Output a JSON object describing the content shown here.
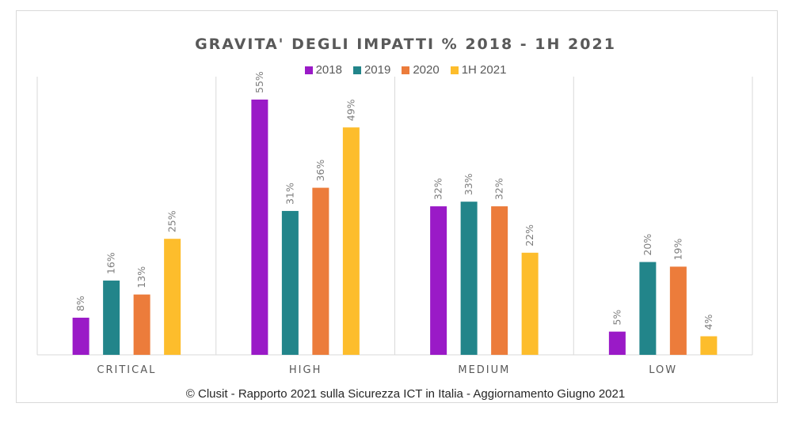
{
  "chart_data": {
    "type": "bar",
    "title": "GRAVITA' DEGLI IMPATTI % 2018 - 1H 2021",
    "categories": [
      "CRITICAL",
      "HIGH",
      "MEDIUM",
      "LOW"
    ],
    "series": [
      {
        "name": "2018",
        "color": "#9a1ac7",
        "values": [
          8,
          55,
          32,
          5
        ]
      },
      {
        "name": "2019",
        "color": "#22858a",
        "values": [
          16,
          31,
          33,
          20
        ]
      },
      {
        "name": "2020",
        "color": "#ec7c3b",
        "values": [
          13,
          36,
          32,
          19
        ]
      },
      {
        "name": "1H 2021",
        "color": "#fdbd2c",
        "values": [
          25,
          49,
          22,
          4
        ]
      }
    ],
    "value_suffix": "%",
    "xlabel": "",
    "ylabel": "",
    "ylim": [
      0,
      60
    ],
    "grid": false,
    "legend_position": "top",
    "data_labels": "rotated-vertical-above-bars"
  },
  "footer": "© Clusit - Rapporto 2021 sulla Sicurezza ICT in Italia - Aggiornamento Giugno 2021"
}
